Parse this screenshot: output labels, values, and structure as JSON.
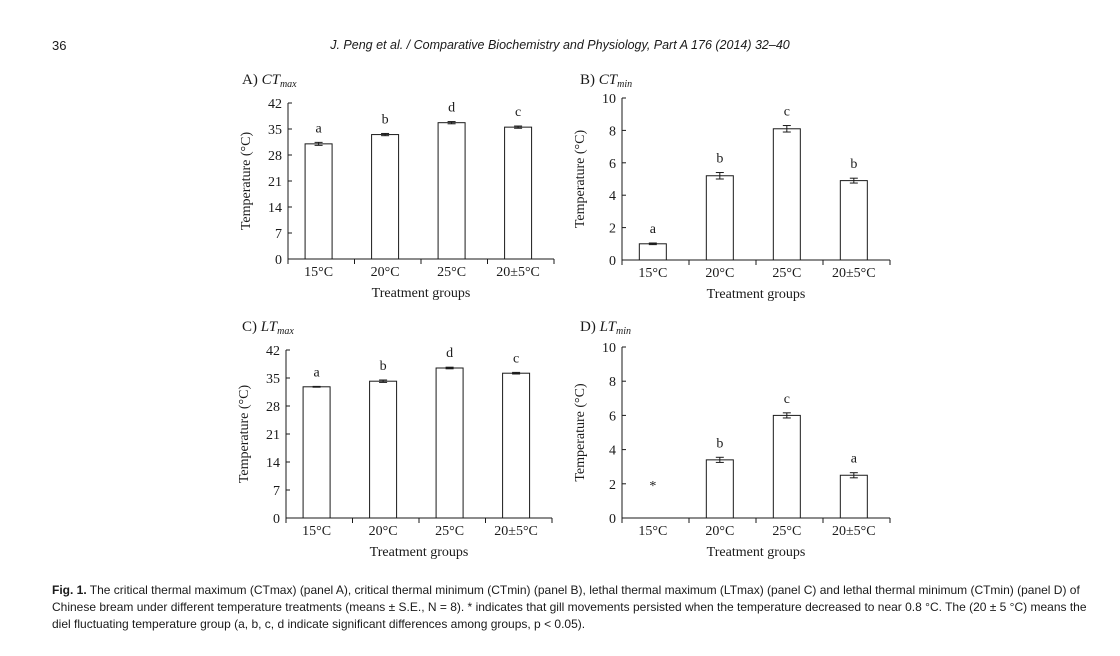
{
  "page": {
    "page_number": "36",
    "running_head": "J. Peng et al. / Comparative Biochemistry and Physiology, Part A 176 (2014) 32–40"
  },
  "chart_data": [
    {
      "type": "bar",
      "panel": "A)",
      "title_main": "CT",
      "title_sub": "max",
      "categories": [
        "15°C",
        "20°C",
        "25°C",
        "20±5°C"
      ],
      "values": [
        31,
        33.5,
        36.7,
        35.5
      ],
      "errors": [
        0.4,
        0.3,
        0.3,
        0.3
      ],
      "letters": [
        "a",
        "b",
        "d",
        "c"
      ],
      "ylim": [
        0,
        42
      ],
      "yticks": [
        0,
        7,
        14,
        21,
        28,
        35,
        42
      ],
      "xlabel": "Treatment groups",
      "ylabel": "Temperature (°C)"
    },
    {
      "type": "bar",
      "panel": "B)",
      "title_main": "CT",
      "title_sub": "min",
      "categories": [
        "15°C",
        "20°C",
        "25°C",
        "20±5°C"
      ],
      "values": [
        1.0,
        5.2,
        8.1,
        4.9
      ],
      "errors": [
        0.05,
        0.2,
        0.2,
        0.15
      ],
      "letters": [
        "a",
        "b",
        "c",
        "b"
      ],
      "ylim": [
        0,
        10
      ],
      "yticks": [
        0,
        2,
        4,
        6,
        8,
        10
      ],
      "xlabel": "Treatment groups",
      "ylabel": "Temperature (°C)"
    },
    {
      "type": "bar",
      "panel": "C)",
      "title_main": "LT",
      "title_sub": "max",
      "categories": [
        "15°C",
        "20°C",
        "25°C",
        "20±5°C"
      ],
      "values": [
        32.8,
        34.2,
        37.5,
        36.2
      ],
      "errors": [
        0.1,
        0.3,
        0.2,
        0.2
      ],
      "letters": [
        "a",
        "b",
        "d",
        "c"
      ],
      "ylim": [
        0,
        42
      ],
      "yticks": [
        0,
        7,
        14,
        21,
        28,
        35,
        42
      ],
      "xlabel": "Treatment groups",
      "ylabel": "Temperature (°C)"
    },
    {
      "type": "bar",
      "panel": "D)",
      "title_main": "LT",
      "title_sub": "min",
      "categories": [
        "15°C",
        "20°C",
        "25°C",
        "20±5°C"
      ],
      "values": [
        null,
        3.4,
        6.0,
        2.5
      ],
      "errors": [
        0,
        0.15,
        0.15,
        0.15
      ],
      "letters": [
        "*",
        "b",
        "c",
        "a"
      ],
      "ylim": [
        0,
        10
      ],
      "yticks": [
        0,
        2,
        4,
        6,
        8,
        10
      ],
      "xlabel": "Treatment groups",
      "ylabel": "Temperature (°C)"
    }
  ],
  "caption": {
    "fig_label": "Fig. 1.",
    "text": " The critical thermal maximum (CTmax) (panel A), critical thermal minimum (CTmin) (panel B), lethal thermal maximum (LTmax) (panel C) and lethal thermal minimum (CTmin) (panel D) of Chinese bream under different temperature treatments (means ± S.E., N = 8). * indicates that gill movements persisted when the temperature decreased to near 0.8 °C. The (20 ± 5 °C) means the diel fluctuating temperature group (a, b, c, d indicate significant differences among groups, p < 0.05)."
  }
}
